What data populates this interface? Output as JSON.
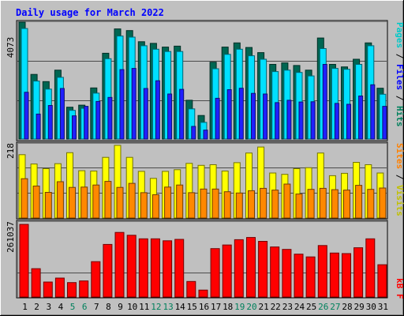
{
  "chart_data": [
    {
      "type": "bar",
      "title": "Daily usage for March 2022",
      "categories": [
        "1",
        "2",
        "3",
        "4",
        "5",
        "6",
        "7",
        "8",
        "9",
        "10",
        "11",
        "12",
        "13",
        "14",
        "15",
        "16",
        "17",
        "18",
        "19",
        "20",
        "21",
        "22",
        "23",
        "24",
        "25",
        "26",
        "27",
        "28",
        "29",
        "30",
        "31"
      ],
      "weekend_days": [
        "5",
        "6",
        "12",
        "13",
        "19",
        "20",
        "26",
        "27"
      ],
      "ymax_label": "4073",
      "ylim": [
        0,
        4073
      ],
      "series": [
        {
          "name": "Hits",
          "values": [
            4073,
            2250,
            2000,
            2400,
            1110,
            1180,
            1780,
            2990,
            3837,
            3778,
            3390,
            3332,
            3202,
            3236,
            1352,
            820,
            2678,
            3202,
            3348,
            3190,
            3012,
            2600,
            2652,
            2561,
            2400,
            3520,
            2600,
            2512,
            2780,
            3349,
            1770
          ]
        },
        {
          "name": "Files",
          "values": [
            3850,
            2020,
            1740,
            2150,
            1000,
            1070,
            1600,
            2800,
            3590,
            3550,
            3250,
            3130,
            3050,
            3050,
            1050,
            580,
            2450,
            2950,
            3130,
            2900,
            2780,
            2350,
            2400,
            2320,
            2200,
            3150,
            2460,
            2430,
            2600,
            3250,
            1560
          ]
        },
        {
          "name": "Pages",
          "values": [
            1630,
            870,
            1170,
            1760,
            810,
            1140,
            1310,
            1450,
            2420,
            2460,
            1760,
            2030,
            1570,
            1730,
            440,
            310,
            1420,
            1720,
            1770,
            1590,
            1570,
            1270,
            1350,
            1290,
            1300,
            2600,
            1240,
            1210,
            1500,
            1890,
            1140
          ]
        }
      ]
    },
    {
      "type": "bar",
      "ymax_label": "218",
      "ylim": [
        0,
        218
      ],
      "series": [
        {
          "name": "Visits",
          "values": [
            190,
            162,
            148,
            163,
            196,
            142,
            141,
            182,
            218,
            182,
            140,
            119,
            140,
            145,
            164,
            158,
            160,
            141,
            166,
            195,
            213,
            135,
            131,
            148,
            151,
            195,
            127,
            134,
            167,
            160,
            135
          ]
        },
        {
          "name": "Sites",
          "values": [
            118,
            96,
            77,
            109,
            92,
            93,
            99,
            110,
            92,
            104,
            76,
            70,
            93,
            99,
            76,
            87,
            87,
            79,
            75,
            82,
            89,
            84,
            102,
            72,
            86,
            89,
            85,
            84,
            98,
            86,
            90
          ]
        }
      ]
    },
    {
      "type": "bar",
      "ymax_label": "261037",
      "ylim": [
        0,
        261037
      ],
      "series": [
        {
          "name": "KBytes",
          "values": [
            261037,
            102000,
            54000,
            68000,
            52000,
            58000,
            127000,
            189000,
            232000,
            222000,
            209000,
            209000,
            202000,
            207000,
            56000,
            25000,
            174000,
            187000,
            206000,
            214000,
            200000,
            180000,
            171000,
            154000,
            144000,
            185000,
            158000,
            156000,
            177000,
            209000,
            116000
          ]
        }
      ]
    }
  ],
  "legend": {
    "top": {
      "items": [
        "Pages",
        "Files",
        "Hits"
      ],
      "sep": " / "
    },
    "middle": {
      "items": [
        "Sites",
        "Visits"
      ],
      "sep": " / "
    },
    "bottom": {
      "items": [
        "kB F"
      ],
      "sep": ""
    }
  },
  "colors": {
    "background": "#c0c0c0",
    "panel": "#c0c0c0",
    "title": "#0000ff",
    "hits": "#006652",
    "files": "#00e0ff",
    "pages": "#2020ff",
    "visits": "#ffff00",
    "sites": "#ff8800",
    "kbytes": "#ff0000",
    "weekend_label": "#00805c",
    "weekday_label": "#000000",
    "legend_hits": "#00805c",
    "legend_files": "#0000ff",
    "legend_pages": "#00c8c8",
    "legend_visits": "#c0c000",
    "legend_sites": "#ff8000",
    "legend_kb": "#ff0000"
  }
}
